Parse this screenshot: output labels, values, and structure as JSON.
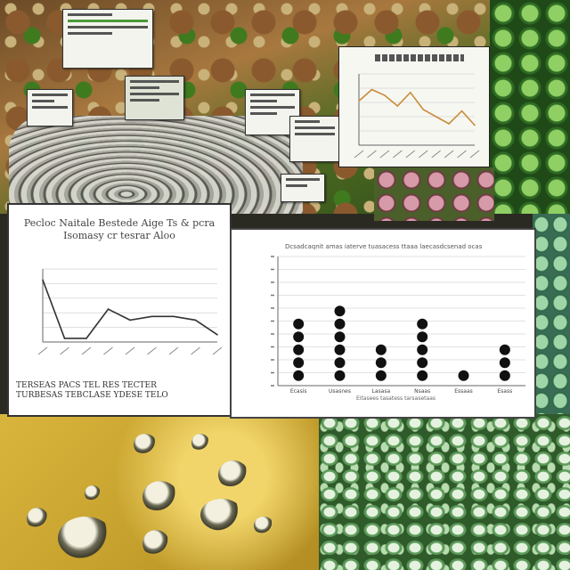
{
  "chart_data": [
    {
      "type": "line",
      "title": "",
      "xlabel": "",
      "ylabel": "",
      "x": [
        1,
        2,
        3,
        4,
        5,
        6,
        7,
        8,
        9,
        10
      ],
      "values": [
        62,
        78,
        70,
        55,
        74,
        50,
        40,
        30,
        48,
        28
      ],
      "ylim": [
        0,
        100
      ],
      "grid": true,
      "line_color": "#c98b3a"
    },
    {
      "type": "line",
      "title": "Pecloc Naitale  Bestede  Aige Ts & pcra Isomasy cr tesrar Aloo",
      "xlabel": "",
      "ylabel": "",
      "x": [
        1,
        2,
        3,
        4,
        5,
        6,
        7,
        8,
        9
      ],
      "values": [
        85,
        5,
        5,
        45,
        30,
        35,
        35,
        30,
        10
      ],
      "ylim": [
        0,
        100
      ],
      "grid": true,
      "line_color": "#333333",
      "footer": [
        "TERSEAS PACS TEL RES TECTER",
        "TURBESAS TEBCLASE YDESE TELO"
      ]
    },
    {
      "type": "scatter",
      "title": "Dcsadcaqnit amas iaterve tuasacess ttaaa laecasdcsenad ocas",
      "categories": [
        "Ecasis",
        "Usasnes",
        "Lasasa",
        "Nsaas",
        "Essaas",
        "Esass"
      ],
      "values": [
        5,
        6,
        3,
        5,
        1,
        3
      ],
      "ylim": [
        0,
        10
      ],
      "grid": true,
      "marker_color": "#111111",
      "caption": "Eitasees tasatess tarsasetaas"
    }
  ]
}
